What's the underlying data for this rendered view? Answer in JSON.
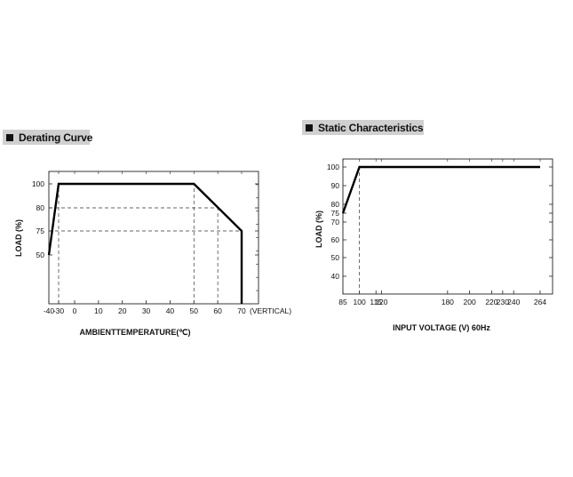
{
  "chart_data": [
    {
      "type": "line",
      "title": "Derating Curve",
      "xlabel": "AMBIENTTEMPERATURE(℃)",
      "ylabel": "LOAD (%)",
      "x_suffix": "(VERTICAL)",
      "xlim": [
        -40,
        75
      ],
      "ylim": [
        0,
        105
      ],
      "xticks": [
        -40,
        -30,
        0,
        10,
        20,
        30,
        40,
        50,
        60,
        70
      ],
      "yticks": [
        50,
        75,
        80,
        100
      ],
      "grid": false,
      "series": [
        {
          "x": [
            -40,
            -30,
            50,
            70,
            70
          ],
          "y": [
            50,
            100,
            100,
            75,
            0
          ]
        }
      ],
      "reference_lines": [
        {
          "x": [
            -30,
            -30
          ],
          "y": [
            0,
            100
          ]
        },
        {
          "x": [
            -40,
            60
          ],
          "y": [
            80,
            80
          ]
        },
        {
          "x": [
            -40,
            70
          ],
          "y": [
            75,
            75
          ]
        },
        {
          "x": [
            50,
            50
          ],
          "y": [
            0,
            100
          ]
        },
        {
          "x": [
            60,
            60
          ],
          "y": [
            0,
            80
          ]
        }
      ]
    },
    {
      "type": "line",
      "title": "Static Characteristics",
      "xlabel": "INPUT VOLTAGE (V) 60Hz",
      "ylabel": "LOAD (%)",
      "xlim": [
        85,
        264
      ],
      "ylim": [
        30,
        105
      ],
      "xticks": [
        85,
        100,
        115,
        120,
        180,
        200,
        220,
        230,
        240,
        264
      ],
      "yticks": [
        40,
        50,
        60,
        70,
        75,
        80,
        90,
        100
      ],
      "grid": false,
      "series": [
        {
          "x": [
            85,
            100,
            264
          ],
          "y": [
            75,
            100,
            100
          ]
        }
      ],
      "reference_lines": [
        {
          "x": [
            100,
            100
          ],
          "y": [
            30,
            100
          ]
        }
      ]
    }
  ]
}
